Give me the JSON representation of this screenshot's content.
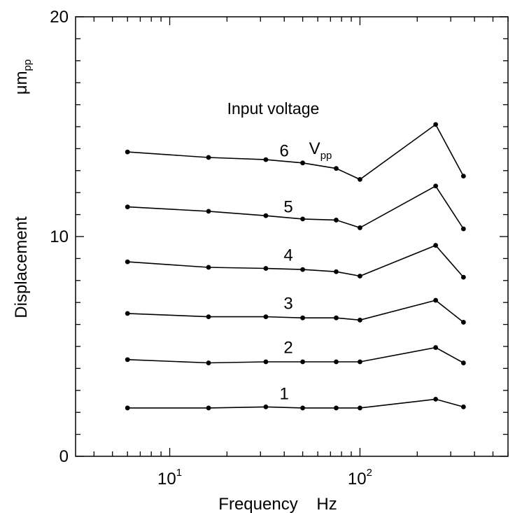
{
  "chart_data": {
    "type": "line",
    "xlabel": "Frequency    Hz",
    "ylabel_main": "Displacement",
    "ylabel_unit": "μm",
    "ylabel_unit_sub": "pp",
    "x_scale": "log",
    "xlim": [
      3.2,
      600
    ],
    "ylim": [
      0,
      20
    ],
    "y_ticks": [
      0,
      10,
      20
    ],
    "y_minor_step": 1,
    "x_ticks": [
      {
        "value": 10,
        "base": "10",
        "exp": "1"
      },
      {
        "value": 100,
        "base": "10",
        "exp": "2"
      }
    ],
    "y_tick_labels": [
      "0",
      "10",
      "20"
    ],
    "grid": false,
    "annotation_title": "Input voltage",
    "annotation_unit": "V",
    "annotation_unit_sub": "pp",
    "x": [
      6,
      16,
      32,
      50,
      75,
      100,
      250,
      350
    ],
    "series": [
      {
        "name": "1",
        "values": [
          2.2,
          2.2,
          2.25,
          2.2,
          2.2,
          2.2,
          2.6,
          2.25
        ]
      },
      {
        "name": "2",
        "values": [
          4.4,
          4.25,
          4.3,
          4.3,
          4.3,
          4.3,
          4.95,
          4.25
        ]
      },
      {
        "name": "3",
        "values": [
          6.5,
          6.35,
          6.35,
          6.3,
          6.3,
          6.2,
          7.1,
          6.1
        ]
      },
      {
        "name": "4",
        "values": [
          8.85,
          8.6,
          8.55,
          8.5,
          8.4,
          8.2,
          9.6,
          8.15
        ]
      },
      {
        "name": "5",
        "values": [
          11.35,
          11.15,
          10.95,
          10.8,
          10.75,
          10.4,
          12.3,
          10.35
        ]
      },
      {
        "name": "6",
        "values": [
          13.85,
          13.6,
          13.5,
          13.35,
          13.1,
          12.6,
          15.1,
          12.75
        ]
      }
    ],
    "series_label_positions": [
      {
        "x": 40,
        "y": 2.6
      },
      {
        "x": 42,
        "y": 4.7
      },
      {
        "x": 42,
        "y": 6.7
      },
      {
        "x": 42,
        "y": 8.9
      },
      {
        "x": 42,
        "y": 11.1
      },
      {
        "x": 40,
        "y": 13.65
      }
    ]
  }
}
